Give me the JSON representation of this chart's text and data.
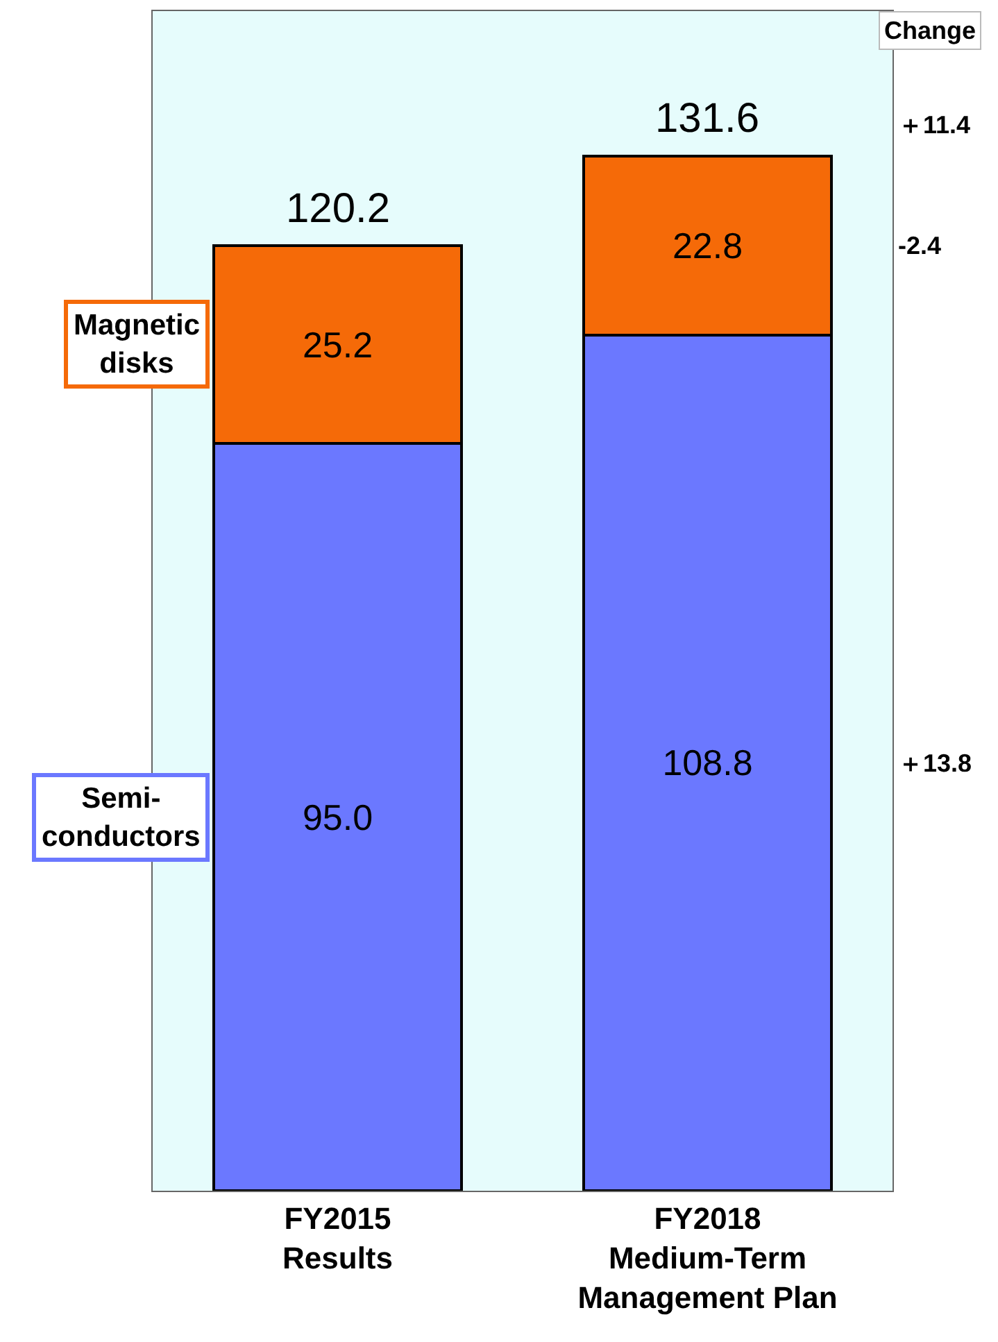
{
  "chart_data": {
    "type": "bar",
    "stacked": true,
    "categories": [
      "FY2015\nResults",
      "FY2018\nMedium-Term\nManagement Plan"
    ],
    "series": [
      {
        "name": "Semi-\nconductors",
        "color": "#6b78ff",
        "values": [
          95.0,
          108.8
        ],
        "value_labels": [
          "95.0",
          "108.8"
        ]
      },
      {
        "name": "Magnetic\ndisks",
        "color": "#f56a08",
        "values": [
          25.2,
          22.8
        ],
        "value_labels": [
          "25.2",
          "22.8"
        ]
      }
    ],
    "totals": [
      "120.2",
      "131.6"
    ],
    "ylim": [
      0,
      150
    ],
    "annotations": [
      "Change",
      "＋11.4",
      "-2.4",
      "＋13.8"
    ],
    "legend": false,
    "grid": false,
    "tick_labels": "x"
  }
}
